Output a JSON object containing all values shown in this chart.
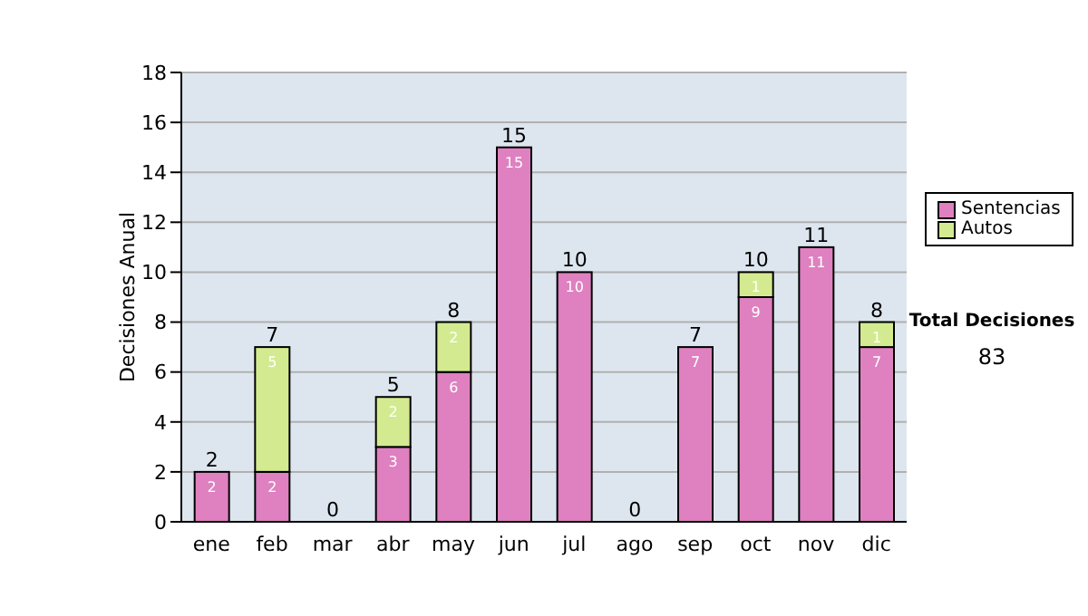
{
  "chart_data": {
    "type": "bar",
    "stacked": true,
    "ylabel": "Decisiones Anual",
    "categories": [
      "ene",
      "feb",
      "mar",
      "abr",
      "may",
      "jun",
      "jul",
      "ago",
      "sep",
      "oct",
      "nov",
      "dic"
    ],
    "series": [
      {
        "name": "Sentencias",
        "color": "#df80c0",
        "values": [
          2,
          2,
          0,
          3,
          6,
          15,
          10,
          0,
          7,
          9,
          11,
          7
        ],
        "value_labels": [
          "2",
          "2",
          null,
          "3",
          "6",
          "15",
          "10",
          null,
          "7",
          "9",
          "11",
          "7"
        ]
      },
      {
        "name": "Autos",
        "color": "#d4ea90",
        "values": [
          0,
          5,
          0,
          2,
          2,
          0,
          0,
          0,
          0,
          1,
          0,
          1
        ],
        "value_labels": [
          null,
          "5",
          null,
          "2",
          "2",
          null,
          null,
          null,
          null,
          "1",
          null,
          "1"
        ]
      }
    ],
    "totals": [
      "2",
      "7",
      "0",
      "5",
      "8",
      "15",
      "10",
      "0",
      "7",
      "10",
      "11",
      "8"
    ],
    "ylim": [
      0,
      18
    ],
    "yticks": [
      0,
      2,
      4,
      6,
      8,
      10,
      12,
      14,
      16,
      18
    ],
    "grid": "y",
    "legend": "right",
    "annotations": [
      "Total Decisiones",
      "83"
    ]
  }
}
